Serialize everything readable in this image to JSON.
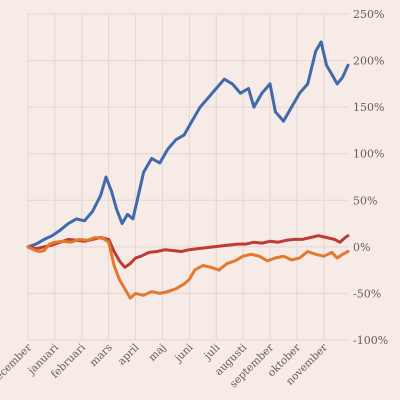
{
  "chart_data": {
    "type": "line",
    "title": "",
    "xlabel": "",
    "ylabel": "",
    "grid": true,
    "ylim": [
      -100,
      250
    ],
    "y_ticks": [
      {
        "value": 250,
        "label": "250%"
      },
      {
        "value": 200,
        "label": "200%"
      },
      {
        "value": 150,
        "label": "150%"
      },
      {
        "value": 100,
        "label": "100%"
      },
      {
        "value": 50,
        "label": "50%"
      },
      {
        "value": 0,
        "label": "0%"
      },
      {
        "value": -50,
        "label": "-50%"
      },
      {
        "value": -100,
        "label": "-100%"
      }
    ],
    "x_ticks": [
      {
        "value": 0,
        "label": "december"
      },
      {
        "value": 1,
        "label": "januari"
      },
      {
        "value": 2,
        "label": "februari"
      },
      {
        "value": 3,
        "label": "mars"
      },
      {
        "value": 4,
        "label": "april"
      },
      {
        "value": 5,
        "label": "maj"
      },
      {
        "value": 6,
        "label": "juni"
      },
      {
        "value": 7,
        "label": "juli"
      },
      {
        "value": 8,
        "label": "augusti"
      },
      {
        "value": 9,
        "label": "september"
      },
      {
        "value": 10,
        "label": "oktober"
      },
      {
        "value": 11,
        "label": "november"
      }
    ],
    "xlim": [
      0,
      11.9
    ],
    "series": [
      {
        "color": "#3f6aae",
        "points": [
          [
            0,
            0
          ],
          [
            0.3,
            3
          ],
          [
            0.6,
            8
          ],
          [
            0.9,
            12
          ],
          [
            1.2,
            18
          ],
          [
            1.5,
            25
          ],
          [
            1.8,
            30
          ],
          [
            2.1,
            28
          ],
          [
            2.4,
            38
          ],
          [
            2.7,
            55
          ],
          [
            2.9,
            75
          ],
          [
            3.1,
            60
          ],
          [
            3.3,
            40
          ],
          [
            3.5,
            25
          ],
          [
            3.7,
            35
          ],
          [
            3.9,
            30
          ],
          [
            4.1,
            55
          ],
          [
            4.3,
            80
          ],
          [
            4.6,
            95
          ],
          [
            4.9,
            90
          ],
          [
            5.2,
            105
          ],
          [
            5.5,
            115
          ],
          [
            5.8,
            120
          ],
          [
            6.1,
            135
          ],
          [
            6.4,
            150
          ],
          [
            6.7,
            160
          ],
          [
            7.0,
            170
          ],
          [
            7.3,
            180
          ],
          [
            7.6,
            175
          ],
          [
            7.9,
            165
          ],
          [
            8.2,
            170
          ],
          [
            8.4,
            150
          ],
          [
            8.7,
            165
          ],
          [
            9.0,
            175
          ],
          [
            9.2,
            145
          ],
          [
            9.5,
            135
          ],
          [
            9.8,
            150
          ],
          [
            10.1,
            165
          ],
          [
            10.4,
            175
          ],
          [
            10.7,
            210
          ],
          [
            10.9,
            220
          ],
          [
            11.1,
            195
          ],
          [
            11.3,
            185
          ],
          [
            11.5,
            175
          ],
          [
            11.7,
            182
          ],
          [
            11.9,
            195
          ]
        ]
      },
      {
        "color": "#bf3b35",
        "points": [
          [
            0,
            0
          ],
          [
            0.3,
            -2
          ],
          [
            0.6,
            0
          ],
          [
            0.9,
            2
          ],
          [
            1.2,
            5
          ],
          [
            1.5,
            8
          ],
          [
            1.8,
            7
          ],
          [
            2.1,
            6
          ],
          [
            2.4,
            8
          ],
          [
            2.7,
            10
          ],
          [
            3.0,
            8
          ],
          [
            3.2,
            -5
          ],
          [
            3.4,
            -15
          ],
          [
            3.6,
            -22
          ],
          [
            3.8,
            -18
          ],
          [
            4.0,
            -12
          ],
          [
            4.2,
            -10
          ],
          [
            4.5,
            -6
          ],
          [
            4.8,
            -5
          ],
          [
            5.1,
            -3
          ],
          [
            5.4,
            -4
          ],
          [
            5.7,
            -5
          ],
          [
            6.0,
            -3
          ],
          [
            6.3,
            -2
          ],
          [
            6.6,
            -1
          ],
          [
            6.9,
            0
          ],
          [
            7.2,
            1
          ],
          [
            7.5,
            2
          ],
          [
            7.8,
            3
          ],
          [
            8.1,
            3
          ],
          [
            8.4,
            5
          ],
          [
            8.7,
            4
          ],
          [
            9.0,
            6
          ],
          [
            9.3,
            5
          ],
          [
            9.6,
            7
          ],
          [
            9.9,
            8
          ],
          [
            10.2,
            8
          ],
          [
            10.5,
            10
          ],
          [
            10.8,
            12
          ],
          [
            11.1,
            10
          ],
          [
            11.4,
            8
          ],
          [
            11.6,
            5
          ],
          [
            11.8,
            10
          ],
          [
            11.9,
            12
          ]
        ]
      },
      {
        "color": "#e2792f",
        "points": [
          [
            0,
            0
          ],
          [
            0.2,
            -3
          ],
          [
            0.4,
            -5
          ],
          [
            0.6,
            -4
          ],
          [
            0.8,
            3
          ],
          [
            1.0,
            5
          ],
          [
            1.3,
            6
          ],
          [
            1.6,
            5
          ],
          [
            1.9,
            8
          ],
          [
            2.2,
            7
          ],
          [
            2.5,
            10
          ],
          [
            2.8,
            9
          ],
          [
            3.0,
            5
          ],
          [
            3.2,
            -20
          ],
          [
            3.4,
            -35
          ],
          [
            3.6,
            -45
          ],
          [
            3.8,
            -55
          ],
          [
            4.0,
            -50
          ],
          [
            4.3,
            -52
          ],
          [
            4.6,
            -48
          ],
          [
            4.9,
            -50
          ],
          [
            5.2,
            -48
          ],
          [
            5.5,
            -45
          ],
          [
            5.8,
            -40
          ],
          [
            6.0,
            -35
          ],
          [
            6.2,
            -25
          ],
          [
            6.5,
            -20
          ],
          [
            6.8,
            -22
          ],
          [
            7.1,
            -25
          ],
          [
            7.4,
            -18
          ],
          [
            7.7,
            -15
          ],
          [
            8.0,
            -10
          ],
          [
            8.3,
            -8
          ],
          [
            8.6,
            -10
          ],
          [
            8.9,
            -15
          ],
          [
            9.2,
            -12
          ],
          [
            9.5,
            -10
          ],
          [
            9.8,
            -14
          ],
          [
            10.1,
            -12
          ],
          [
            10.4,
            -5
          ],
          [
            10.7,
            -8
          ],
          [
            11.0,
            -10
          ],
          [
            11.3,
            -6
          ],
          [
            11.5,
            -12
          ],
          [
            11.7,
            -8
          ],
          [
            11.9,
            -5
          ]
        ]
      }
    ]
  }
}
